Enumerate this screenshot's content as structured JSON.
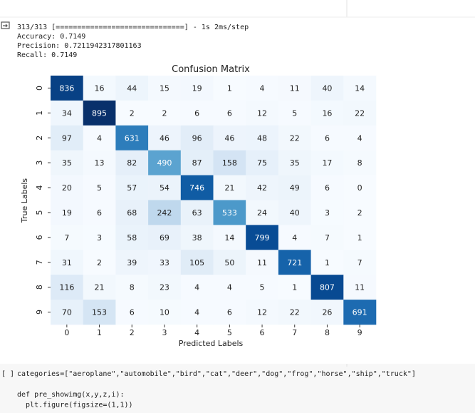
{
  "output": {
    "lines": [
      "313/313 [==============================] - 1s 2ms/step",
      "Accuracy: 0.7149",
      "Precision: 0.7211942317801163",
      "Recall: 0.7149"
    ]
  },
  "chart_data": {
    "type": "heatmap",
    "title": "Confusion Matrix",
    "x_label": "Predicted Labels",
    "y_label": "True Labels",
    "x_categories": [
      0,
      1,
      2,
      3,
      4,
      5,
      6,
      7,
      8,
      9
    ],
    "y_categories": [
      0,
      1,
      2,
      3,
      4,
      5,
      6,
      7,
      8,
      9
    ],
    "colormap": "Blues",
    "values": [
      [
        836,
        16,
        44,
        15,
        19,
        1,
        4,
        11,
        40,
        14
      ],
      [
        34,
        895,
        2,
        2,
        6,
        6,
        12,
        5,
        16,
        22
      ],
      [
        97,
        4,
        631,
        46,
        96,
        46,
        48,
        22,
        6,
        4
      ],
      [
        35,
        13,
        82,
        490,
        87,
        158,
        75,
        35,
        17,
        8
      ],
      [
        20,
        5,
        57,
        54,
        746,
        21,
        42,
        49,
        6,
        0
      ],
      [
        19,
        6,
        68,
        242,
        63,
        533,
        24,
        40,
        3,
        2
      ],
      [
        7,
        3,
        58,
        69,
        38,
        14,
        799,
        4,
        7,
        1
      ],
      [
        31,
        2,
        39,
        33,
        105,
        50,
        11,
        721,
        1,
        7
      ],
      [
        116,
        21,
        8,
        23,
        4,
        4,
        5,
        1,
        807,
        11
      ],
      [
        70,
        153,
        6,
        10,
        4,
        6,
        12,
        22,
        26,
        691
      ]
    ]
  },
  "code": {
    "prompt": "[ ]",
    "lines": [
      "categories=[\"aeroplane\",\"automobile\",\"bird\",\"cat\",\"deer\",\"dog\",\"frog\",\"horse\",\"ship\",\"truck\"]",
      "",
      "def pre_showimg(x,y,z,i):",
      "  plt.figure(figsize=(1,1))"
    ]
  }
}
